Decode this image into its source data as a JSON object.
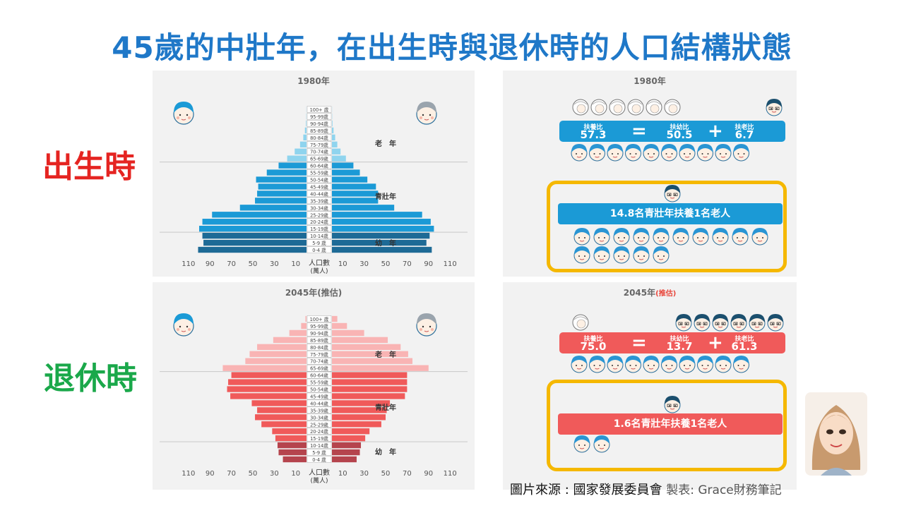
{
  "title": "45歲的中壯年，在出生時與退休時的人口結構狀態",
  "labels": {
    "birth": "出生時",
    "retire": "退休時"
  },
  "colors": {
    "title": "#1f78c8",
    "birth_label": "#e52421",
    "retire_label": "#1aa84a",
    "blue_dark": "#1d6a96",
    "blue": "#1b9ad6",
    "blue_light": "#8fd4ee",
    "red_dark": "#b5444d",
    "red": "#f05a5a",
    "red_light": "#f9b4b4",
    "highlight_border": "#f5b800"
  },
  "pyramids": {
    "y_axis_title": "人口數",
    "y_axis_unit": "(萬人)",
    "age_groups": [
      "0-4 歲",
      "5-9 歲",
      "10-14歲",
      "15-19歲",
      "20-24歲",
      "25-29歲",
      "30-34歲",
      "35-39歲",
      "40-44歲",
      "45-49歲",
      "50-54歲",
      "55-59歲",
      "60-64歲",
      "65-69歲",
      "70-74歲",
      "75-79歲",
      "80-84歲",
      "85-89歲",
      "90-94歲",
      "95-99歲",
      "100+ 歲"
    ],
    "section_labels": {
      "elderly": "老　年",
      "working": "青壯年",
      "youth": "幼　年"
    },
    "tick_labels": [
      "110",
      "90",
      "70",
      "50",
      "30",
      "10",
      "10",
      "30",
      "50",
      "70",
      "90",
      "110"
    ]
  },
  "chart_data": [
    {
      "type": "bar",
      "title": "1980年",
      "xlabel": "人口數 (萬人)",
      "xlim": [
        0,
        110
      ],
      "categories": [
        "0-4 歲",
        "5-9 歲",
        "10-14歲",
        "15-19歲",
        "20-24歲",
        "25-29歲",
        "30-34歲",
        "35-39歲",
        "40-44歲",
        "45-49歲",
        "50-54歲",
        "55-59歲",
        "60-64歲",
        "65-69歲",
        "70-74歲",
        "75-79歲",
        "80-84歲",
        "85-89歲",
        "90-94歲",
        "95-99歲",
        "100+ 歲"
      ],
      "series": [
        {
          "values": [
            101,
            96,
            97,
            100,
            97,
            88,
            62,
            48,
            46,
            45,
            47,
            37,
            26,
            18,
            11,
            6,
            3,
            1.5,
            0.5,
            0.2,
            0.1
          ]
        },
        {
          "values": [
            93,
            88,
            91,
            95,
            92,
            84,
            58,
            43,
            43,
            41,
            33,
            26,
            20,
            13,
            8,
            5,
            3,
            1.5,
            0.5,
            0.2,
            0.1
          ]
        }
      ]
    },
    {
      "type": "bar",
      "title": "2045年(推估)",
      "xlabel": "人口數 (萬人)",
      "xlim": [
        0,
        110
      ],
      "categories": [
        "0-4 歲",
        "5-9 歲",
        "10-14歲",
        "15-19歲",
        "20-24歲",
        "25-29歲",
        "30-34歲",
        "35-39歲",
        "40-44歲",
        "45-49歲",
        "50-54歲",
        "55-59歲",
        "60-64歲",
        "65-69歲",
        "70-74歲",
        "75-79歲",
        "80-84歲",
        "85-89歲",
        "90-94歲",
        "95-99歲",
        "100+ 歲"
      ],
      "series": [
        {
          "values": [
            22,
            26,
            27,
            29,
            32,
            42,
            48,
            46,
            51,
            71,
            74,
            73,
            70,
            78,
            57,
            53,
            46,
            31,
            16,
            5,
            1
          ]
        },
        {
          "values": [
            23,
            26,
            27,
            31,
            35,
            46,
            50,
            51,
            54,
            68,
            70,
            70,
            70,
            90,
            75,
            71,
            64,
            52,
            30,
            14,
            5
          ]
        }
      ]
    },
    {
      "type": "table",
      "title": "1980年",
      "labels": [
        "扶養比",
        "扶幼比",
        "扶老比"
      ],
      "values": [
        57.3,
        50.5,
        6.7
      ],
      "support": "14.8名青壯年扶養1名老人"
    },
    {
      "type": "table",
      "title": "2045年(推估)",
      "labels": [
        "扶養比",
        "扶幼比",
        "扶老比"
      ],
      "values": [
        75.0,
        13.7,
        61.3
      ],
      "support": "1.6名青壯年扶養1名老人"
    }
  ],
  "ratios": {
    "y1980": {
      "title": "1980年",
      "dep_label": "扶養比",
      "dep": "57.3",
      "youth_label": "扶幼比",
      "youth": "50.5",
      "old_label": "扶老比",
      "old": "6.7",
      "eq": "=",
      "plus": "+",
      "support": "14.8名青壯年扶養1名老人"
    },
    "y2045": {
      "title": "2045年",
      "est": "(推估)",
      "dep_label": "扶養比",
      "dep": "75.0",
      "youth_label": "扶幼比",
      "youth": "13.7",
      "old_label": "扶老比",
      "old": "61.3",
      "eq": "=",
      "plus": "+",
      "support": "1.6名青壯年扶養1名老人"
    }
  },
  "icon_counts": {
    "y1980": {
      "babies": 6,
      "elders": 1,
      "workers_row": 10,
      "support_workers": 15,
      "support_elders": 1
    },
    "y2045": {
      "babies": 1,
      "elders": 6,
      "workers_row": 10,
      "support_workers": 2,
      "support_elders": 1
    }
  },
  "credit": {
    "source": "圖片來源 : 國家發展委員會",
    "maker": "製表: Grace財務筆記"
  }
}
